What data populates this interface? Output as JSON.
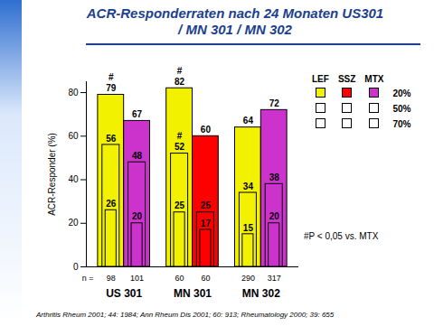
{
  "chart_data": {
    "type": "bar",
    "title": "ACR-Responderraten nach 24 Monaten US301 / MN 301 / MN 302",
    "y_label": "ACR-Responder (%)",
    "categories": [
      "US 301",
      "MN 301",
      "MN 302"
    ],
    "levels": [
      "20%",
      "50%",
      "70%"
    ],
    "series": [
      {
        "name": "LEF",
        "color": "#f2f200",
        "values": [
          [
            79,
            56,
            26
          ],
          [
            82,
            52,
            25
          ],
          [
            64,
            34,
            15
          ]
        ],
        "n": [
          98,
          60,
          290
        ]
      },
      {
        "name": "SSZ",
        "color": "#ff0000",
        "values": [
          null,
          [
            60,
            25,
            17
          ],
          null
        ],
        "n": [
          null,
          60,
          null
        ]
      },
      {
        "name": "MTX",
        "color": "#cc33cc",
        "values": [
          [
            67,
            48,
            20
          ],
          null,
          [
            72,
            38,
            20
          ]
        ],
        "n": [
          101,
          null,
          317
        ]
      }
    ],
    "n_label": "n =",
    "annotations": [
      {
        "series": "LEF",
        "category": "US 301",
        "level": "20%",
        "text": "#"
      },
      {
        "series": "LEF",
        "category": "MN 301",
        "level": "20%",
        "text": "#"
      },
      {
        "series": "LEF",
        "category": "MN 301",
        "level": "50%",
        "text": "#"
      }
    ],
    "footnote": "#P < 0,05 vs. MTX",
    "source": "Arthritis Rheum 2001; 44: 1984; Ann Rheum Dis 2001; 60: 913; Rheumatology 2000; 39: 655",
    "ylim": [
      0,
      85
    ],
    "yticks": [
      0,
      20,
      40,
      60,
      80
    ],
    "grid": false,
    "data_labels": true,
    "legend": "right"
  }
}
